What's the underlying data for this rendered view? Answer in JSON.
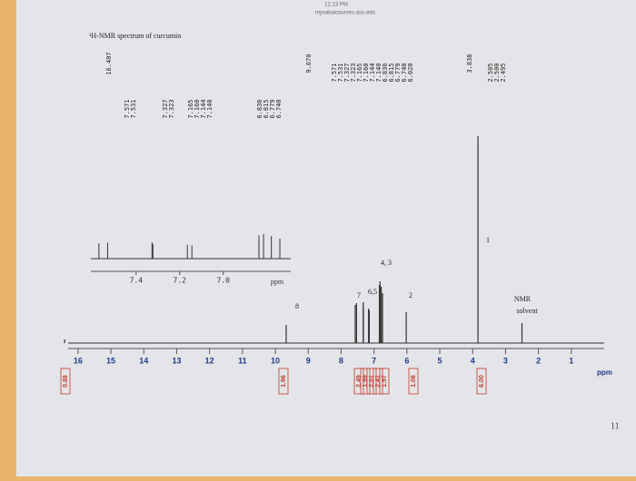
{
  "status_bar": {
    "time": "12:13 PM",
    "url": "mysakaicourses.asu.edu"
  },
  "page_number": "11",
  "chart_data": {
    "type": "nmr",
    "title": "¹H-NMR spectrum of curcumin",
    "x_label": "ppm",
    "xlim": [
      16.3,
      0
    ],
    "xticks": [
      16,
      15,
      14,
      13,
      12,
      11,
      10,
      9,
      8,
      7,
      6,
      5,
      4,
      3,
      2,
      1
    ],
    "peaks": {
      "x": [
        16.407,
        9.67,
        7.571,
        7.531,
        7.327,
        7.323,
        7.165,
        7.144,
        6.836,
        6.815,
        6.779,
        6.74,
        6.02,
        3.838,
        2.5
      ],
      "values": [
        4,
        20,
        42,
        44,
        45,
        40,
        38,
        36,
        64,
        68,
        62,
        55,
        34,
        228,
        22
      ]
    },
    "peak_labels": [
      "16.407",
      "7.571",
      "7.531",
      "7.327",
      "7.323",
      "7.165",
      "7.160",
      "7.144",
      "7.140",
      "6.836",
      "6.815",
      "6.779",
      "6.740",
      "9.670",
      "7.571",
      "7.531",
      "7.327",
      "7.323",
      "7.165",
      "7.160",
      "7.144",
      "7.140",
      "6.836",
      "6.815",
      "6.779",
      "6.740",
      "6.020",
      "3.838",
      "2.505",
      "2.500",
      "2.495"
    ],
    "annotations": [
      "4, 3",
      "7",
      "6,5",
      "2",
      "8",
      "1",
      "NMR",
      "solvent"
    ],
    "integrals": [
      "0.88",
      "1.96",
      "2.49",
      "1.99",
      "2.01",
      "2.41",
      "1.97",
      "1.06",
      "6.00"
    ],
    "inset": {
      "xlim": [
        7.608,
        6.69
      ],
      "xticks": [
        7.4,
        7.2,
        {
          "value": 7.0,
          "label": "7.0"
        }
      ],
      "x_label": "ppm"
    },
    "color": "#333333"
  }
}
